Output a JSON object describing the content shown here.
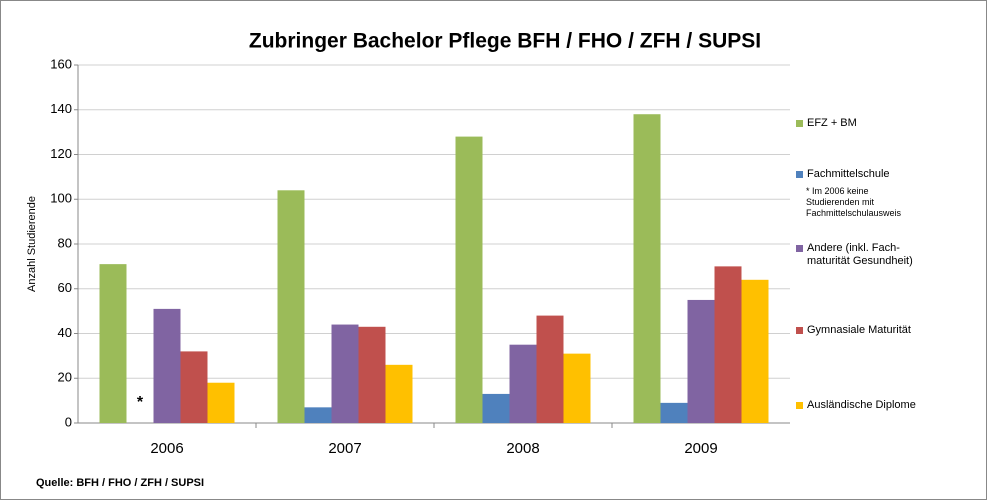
{
  "chart_data": {
    "type": "bar",
    "title": "Zubringer Bachelor Pflege BFH / FHO / ZFH / SUPSI",
    "y_label": "Anzahl Studierende",
    "source": "Quelle: BFH / FHO / ZFH / SUPSI",
    "note_marker": "*",
    "note": "* Im 2006 keine\nStudierenden mit\nFachmittelschulausweis",
    "categories": [
      "2006",
      "2007",
      "2008",
      "2009"
    ],
    "series": [
      {
        "name": "EFZ + BM",
        "color": "#9bbb59",
        "values": [
          71,
          104,
          128,
          138
        ]
      },
      {
        "name": "Fachmittelschule",
        "color": "#4f81bd",
        "values": [
          null,
          7,
          13,
          9
        ]
      },
      {
        "name": "Andere (inkl. Fach-\nmaturität Gesundheit)",
        "color": "#8064a2",
        "values": [
          51,
          44,
          35,
          55
        ]
      },
      {
        "name": "Gymnasiale Maturität",
        "color": "#c0504d",
        "values": [
          32,
          43,
          48,
          70
        ]
      },
      {
        "name": "Ausländische Diplome",
        "color": "#ffc000",
        "values": [
          18,
          26,
          31,
          64
        ]
      }
    ],
    "ylim": [
      0,
      160
    ],
    "yticks": [
      0,
      20,
      40,
      60,
      80,
      100,
      120,
      140,
      160
    ],
    "grid": true
  }
}
